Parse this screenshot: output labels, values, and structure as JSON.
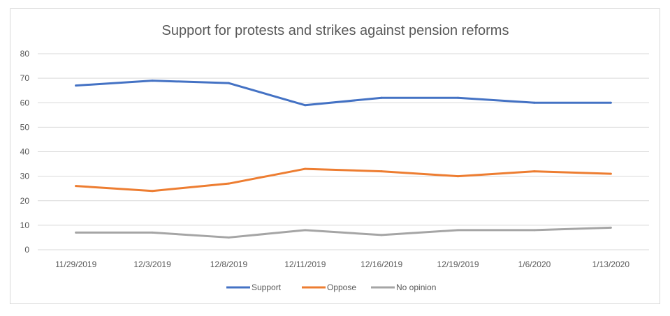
{
  "chart_data": {
    "type": "line",
    "title": "Support for protests and strikes against pension reforms",
    "xlabel": "",
    "ylabel": "",
    "categories": [
      "11/29/2019",
      "12/3/2019",
      "12/8/2019",
      "12/11/2019",
      "12/16/2019",
      "12/19/2019",
      "1/6/2020",
      "1/13/2020"
    ],
    "ylim": [
      0,
      80
    ],
    "yticks": [
      0,
      10,
      20,
      30,
      40,
      50,
      60,
      70,
      80
    ],
    "grid": true,
    "legend_position": "bottom",
    "series": [
      {
        "name": "Support",
        "color": "#4472c4",
        "values": [
          67,
          69,
          68,
          59,
          62,
          62,
          60,
          60
        ]
      },
      {
        "name": "Oppose",
        "color": "#ed7d31",
        "values": [
          26,
          24,
          27,
          33,
          32,
          30,
          32,
          31
        ]
      },
      {
        "name": "No opinion",
        "color": "#a5a5a5",
        "values": [
          7,
          7,
          5,
          8,
          6,
          8,
          8,
          9
        ]
      }
    ]
  }
}
